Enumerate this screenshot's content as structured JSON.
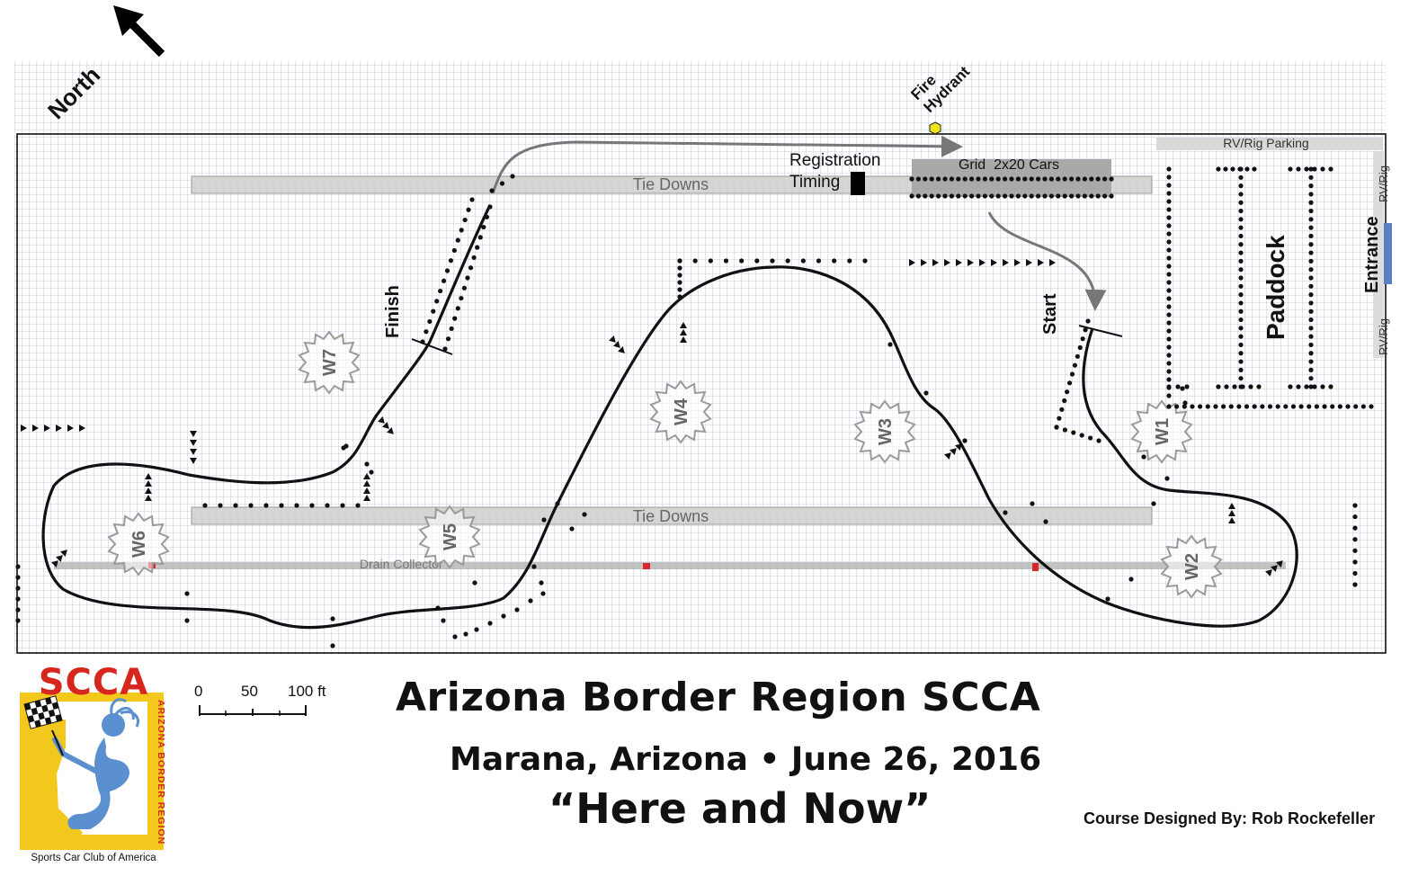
{
  "map": {
    "north_label": "North",
    "fire_hydrant": [
      "Fire",
      "Hydrant"
    ],
    "rv_rig_parking": "RV/Rig Parking",
    "rv_rig": "RV/Rig",
    "entrance": "Entrance",
    "paddock": "Paddock",
    "registration": "Registration",
    "timing": "Timing",
    "grid": "Grid  2x20 Cars",
    "tie_downs_top": "Tie Downs",
    "tie_downs_bottom": "Tie Downs",
    "drain_collector": "Drain Collector",
    "start": "Start",
    "finish": "Finish",
    "workers": [
      "W1",
      "W2",
      "W3",
      "W4",
      "W5",
      "W6",
      "W7"
    ],
    "colors": {
      "grid_line": "#aebfda",
      "track": "#111111",
      "pad": "#cfcfcf",
      "hydrant": "#f2e21a",
      "drain_marker": "#d8262a",
      "entrance_bar": "#5b7fc4"
    }
  },
  "scale_bar": {
    "labels": [
      "0",
      "50",
      "100 ft"
    ]
  },
  "logo": {
    "word": "SCCA",
    "side_text": "ARIZONA BORDER REGION",
    "tagline": "Sports Car Club of America"
  },
  "titles": {
    "line1": "Arizona Border Region SCCA",
    "line2": "Marana, Arizona • June 26, 2016",
    "line3": "“Here and Now”"
  },
  "credit": "Course Designed By:  Rob Rockefeller"
}
